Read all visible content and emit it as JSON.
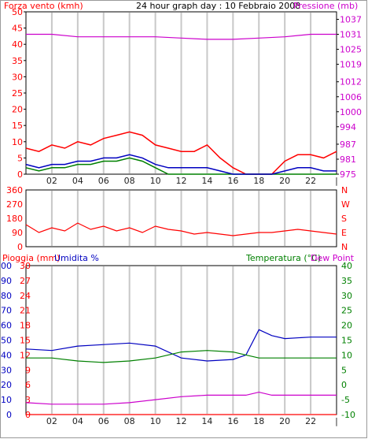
{
  "colors": {
    "red": "#ff0000",
    "blue": "#0000c0",
    "green": "#008000",
    "magenta": "#cc00cc",
    "grid": "#c8c8c8",
    "dark": "#000000"
  },
  "header": {
    "left_label": "Forza vento (kmh)",
    "title": "24 hour graph day : 10 Febbraio 2008",
    "right_label": "Pressione (mb)"
  },
  "panel3_labels": {
    "rain": "Pioggia (mm)",
    "hum": "Umidita %",
    "temp": "Temperatura (°C)",
    "dew": "Dew Point"
  },
  "x_ticks": [
    "02",
    "04",
    "06",
    "08",
    "10",
    "12",
    "14",
    "16",
    "18",
    "20",
    "22",
    "|"
  ],
  "chart_data": [
    {
      "type": "line",
      "name": "wind-pressure",
      "title": "24 hour graph day : 10 Febbraio 2008",
      "ylabel": "Forza vento (kmh)",
      "y2label": "Pressione (mb)",
      "x_ticks": [
        "02",
        "04",
        "06",
        "08",
        "10",
        "12",
        "14",
        "16",
        "18",
        "20",
        "22",
        "|"
      ],
      "xlim": [
        0,
        24
      ],
      "ylim": [
        0,
        50
      ],
      "y_ticks": [
        0,
        5,
        10,
        15,
        20,
        25,
        30,
        35,
        40,
        45,
        50
      ],
      "y2lim": [
        975,
        1040
      ],
      "y2_ticks": [
        975,
        981,
        987,
        994,
        1000,
        1006,
        1012,
        1019,
        1025,
        1031,
        1037
      ],
      "gust": {
        "x": [
          0,
          1,
          2,
          3,
          4,
          5,
          6,
          7,
          8,
          9,
          10,
          11,
          12,
          13,
          14,
          15,
          16,
          17,
          18,
          19,
          20,
          21,
          22,
          23,
          24
        ],
        "y": [
          8,
          7,
          9,
          8,
          10,
          9,
          11,
          12,
          13,
          12,
          9,
          8,
          7,
          7,
          9,
          5,
          2,
          0,
          0,
          0,
          4,
          6,
          6,
          5,
          7
        ]
      },
      "wind_avg": {
        "x": [
          0,
          1,
          2,
          3,
          4,
          5,
          6,
          7,
          8,
          9,
          10,
          11,
          12,
          13,
          14,
          15,
          16,
          17,
          18,
          19,
          20,
          21,
          22,
          23,
          24
        ],
        "y": [
          3,
          2,
          3,
          3,
          4,
          4,
          5,
          5,
          6,
          5,
          3,
          2,
          2,
          2,
          2,
          1,
          0,
          0,
          0,
          0,
          1,
          2,
          2,
          1,
          1
        ]
      },
      "wind_green": {
        "x": [
          0,
          1,
          2,
          3,
          4,
          5,
          6,
          7,
          8,
          9,
          10,
          11,
          12,
          13,
          14,
          15,
          16,
          17,
          18,
          19,
          20,
          21,
          22,
          23,
          24
        ],
        "y": [
          2,
          1,
          2,
          2,
          3,
          3,
          4,
          4,
          5,
          4,
          2,
          0,
          0,
          0,
          0,
          0,
          0,
          0,
          0,
          0,
          0,
          0,
          0,
          0,
          0
        ]
      },
      "pressure": {
        "x": [
          0,
          2,
          4,
          6,
          8,
          10,
          12,
          14,
          16,
          18,
          20,
          22,
          24
        ],
        "y": [
          1031,
          1031,
          1030,
          1030,
          1030,
          1030,
          1029.5,
          1029,
          1029,
          1029.5,
          1030,
          1031,
          1031
        ]
      }
    },
    {
      "type": "line",
      "name": "wind-direction",
      "ylim": [
        0,
        360
      ],
      "y_ticks": [
        0,
        90,
        180,
        270,
        360
      ],
      "y2_labels": [
        "N",
        "W",
        "S",
        "E",
        "N"
      ],
      "direction": {
        "x": [
          0,
          1,
          2,
          3,
          4,
          5,
          6,
          7,
          8,
          9,
          10,
          11,
          12,
          13,
          14,
          15,
          16,
          17,
          18,
          19,
          20,
          21,
          22,
          23,
          24
        ],
        "y": [
          140,
          90,
          120,
          100,
          150,
          110,
          130,
          100,
          120,
          90,
          130,
          110,
          100,
          80,
          90,
          80,
          70,
          80,
          90,
          90,
          100,
          110,
          100,
          90,
          80
        ]
      }
    },
    {
      "type": "line",
      "name": "rain-humidity-temperature",
      "ylim": [
        0,
        30
      ],
      "y_ticks": [
        0,
        3,
        6,
        9,
        12,
        15,
        18,
        21,
        24,
        27,
        30
      ],
      "hum_lim": [
        0,
        100
      ],
      "hum_ticks": [
        0,
        10,
        20,
        30,
        40,
        50,
        60,
        70,
        80,
        90,
        100
      ],
      "temp_lim": [
        -10,
        40
      ],
      "temp_ticks": [
        -10,
        -5,
        0,
        5,
        10,
        15,
        20,
        25,
        30,
        35,
        40
      ],
      "humidity": {
        "x": [
          0,
          2,
          4,
          6,
          8,
          10,
          12,
          14,
          16,
          17,
          18,
          19,
          20,
          22,
          24
        ],
        "y": [
          44,
          43,
          46,
          47,
          48,
          46,
          38,
          36,
          37,
          40,
          57,
          53,
          51,
          52,
          52
        ]
      },
      "temperature": {
        "x": [
          0,
          2,
          4,
          6,
          8,
          10,
          12,
          14,
          16,
          17,
          18,
          19,
          20,
          22,
          24
        ],
        "y": [
          9,
          9,
          8,
          7.5,
          8,
          9,
          11,
          11.5,
          11,
          10,
          9,
          9,
          9,
          9,
          9
        ]
      },
      "dew_point": {
        "x": [
          0,
          2,
          4,
          6,
          8,
          10,
          12,
          14,
          16,
          17,
          18,
          19,
          20,
          22,
          24
        ],
        "y": [
          -6,
          -6.5,
          -6.5,
          -6.5,
          -6,
          -5,
          -4,
          -3.5,
          -3.5,
          -3.5,
          -2.5,
          -3.5,
          -3.5,
          -3.5,
          -3.5
        ]
      },
      "rain": {
        "x": [
          0,
          24
        ],
        "y": [
          0,
          0
        ]
      }
    }
  ]
}
